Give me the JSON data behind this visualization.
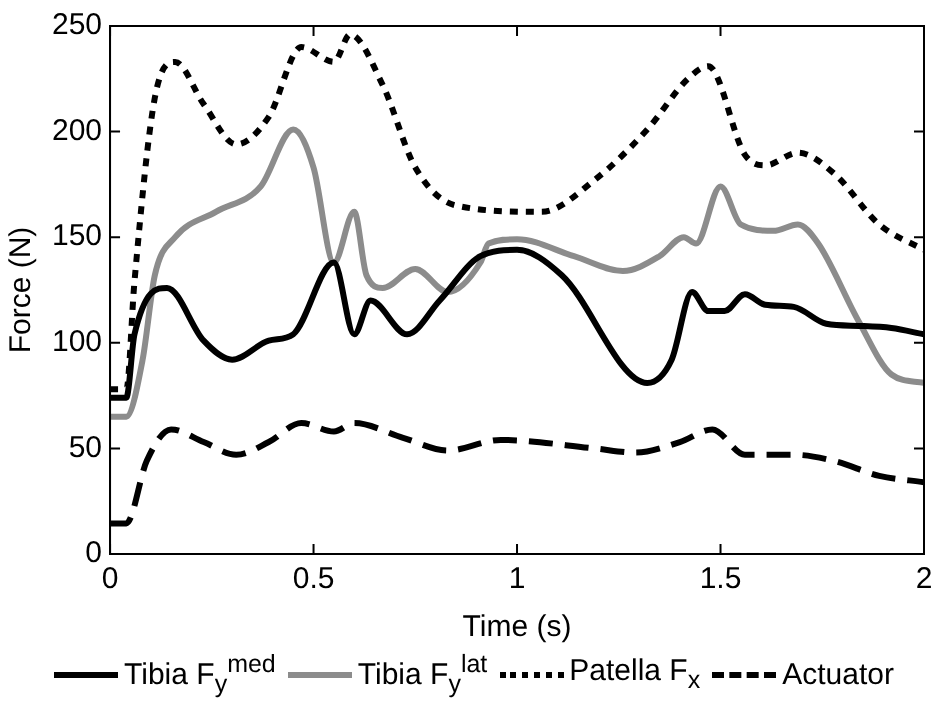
{
  "chart_data": {
    "type": "line",
    "xlabel": "Time (s)",
    "ylabel": "Force (N)",
    "xlim": [
      0,
      2
    ],
    "xticks": [
      0,
      0.5,
      1,
      1.5,
      2
    ],
    "ylim": [
      0,
      250
    ],
    "yticks": [
      0,
      50,
      100,
      150,
      200,
      250
    ],
    "grid": false,
    "legend": "bottom",
    "marker": "none",
    "series": [
      {
        "name": "Tibia F$_{y}$$^{med}$",
        "color": "#000000",
        "line_style": "solid",
        "x": [
          0,
          0.04,
          0.06,
          0.14,
          0.23,
          0.3,
          0.39,
          0.45,
          0.55,
          0.6,
          0.64,
          0.73,
          0.81,
          0.91,
          1.0,
          1.11,
          1.32,
          1.38,
          1.43,
          1.47,
          1.51,
          1.56,
          1.61,
          1.68,
          1.76,
          1.84,
          1.92,
          2
        ],
        "values": [
          74,
          74,
          104,
          126,
          101,
          92,
          101,
          104,
          138,
          104,
          120,
          104,
          120,
          141,
          144,
          132,
          81,
          92,
          124,
          115,
          115,
          123,
          118,
          117,
          109,
          108,
          107,
          104
        ]
      },
      {
        "name": "Tibia F$_{y}$$^{lat}$",
        "color": "#8c8c8c",
        "line_style": "solid",
        "x": [
          0,
          0.04,
          0.08,
          0.11,
          0.16,
          0.26,
          0.37,
          0.45,
          0.5,
          0.55,
          0.6,
          0.63,
          0.67,
          0.75,
          0.83,
          0.91,
          0.93,
          1,
          1.14,
          1.26,
          1.35,
          1.41,
          1.44,
          1.5,
          1.55,
          1.63,
          1.69,
          1.74,
          1.84,
          1.92,
          2
        ],
        "values": [
          65,
          65,
          92,
          132,
          150,
          162,
          174,
          201,
          183,
          138,
          162,
          132,
          126,
          135,
          124,
          138,
          147,
          149,
          141,
          134,
          141,
          150,
          147,
          174,
          156,
          153,
          156,
          147,
          110,
          85,
          81
        ]
      },
      {
        "name": "Patella F$_{x}$",
        "color": "#000000",
        "line_style": "dotted",
        "x": [
          0,
          0.04,
          0.06,
          0.11,
          0.16,
          0.23,
          0.31,
          0.39,
          0.47,
          0.55,
          0.59,
          0.67,
          0.75,
          0.85,
          1.06,
          1.19,
          1.32,
          1.42,
          1.47,
          1.56,
          1.61,
          1.69,
          1.78,
          1.89,
          2
        ],
        "values": [
          78,
          78,
          129,
          216,
          233,
          213,
          194,
          207,
          240,
          233,
          246,
          222,
          183,
          165,
          162,
          177,
          201,
          225,
          231,
          189,
          184,
          190,
          180,
          156,
          144
        ]
      },
      {
        "name": "Actuator",
        "color": "#000000",
        "line_style": "dashed",
        "x": [
          0,
          0.04,
          0.09,
          0.15,
          0.23,
          0.31,
          0.39,
          0.47,
          0.55,
          0.6,
          0.72,
          0.83,
          0.96,
          1.19,
          1.29,
          1.4,
          1.48,
          1.56,
          1.68,
          1.78,
          1.89,
          2
        ],
        "values": [
          14.5,
          14.5,
          44,
          59,
          53,
          47,
          53,
          62,
          58,
          62,
          55,
          49,
          54,
          50,
          48,
          53,
          59,
          47,
          47,
          44,
          37,
          34
        ]
      }
    ]
  }
}
